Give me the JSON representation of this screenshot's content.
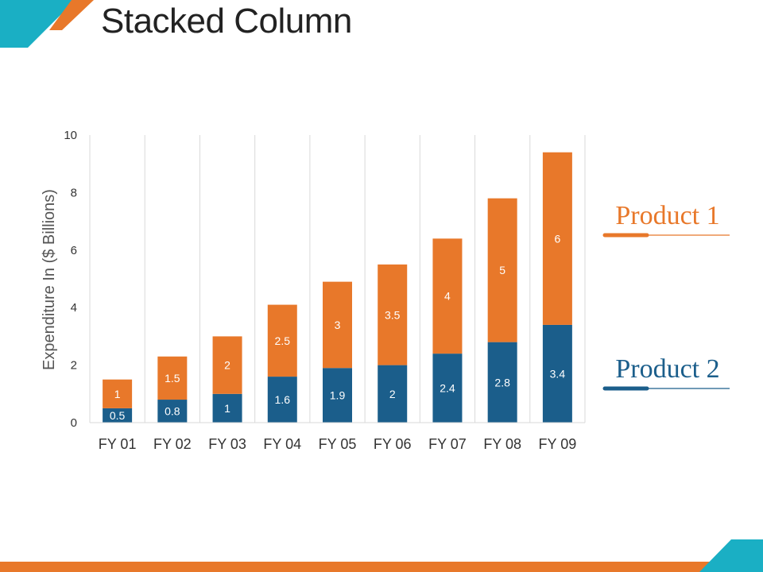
{
  "title": "Stacked Column",
  "colors": {
    "orange": "#E8782A",
    "blue": "#1B5E8B",
    "teal": "#1AAFC4",
    "grid": "#D9D9D9"
  },
  "chart_data": {
    "type": "bar",
    "stacked": true,
    "categories": [
      "FY 01",
      "FY 02",
      "FY 03",
      "FY 04",
      "FY 05",
      "FY 06",
      "FY 07",
      "FY 08",
      "FY 09"
    ],
    "series": [
      {
        "name": "Product 2",
        "color": "#1B5E8B",
        "values": [
          0.5,
          0.8,
          1,
          1.6,
          1.9,
          2,
          2.4,
          2.8,
          3.4
        ]
      },
      {
        "name": "Product 1",
        "color": "#E8782A",
        "values": [
          1,
          1.5,
          2,
          2.5,
          3,
          3.5,
          4,
          5,
          6
        ]
      }
    ],
    "ylabel": "Expenditure In ($ Billions)",
    "xlabel": "",
    "ylim": [
      0,
      10
    ],
    "yticks": [
      0,
      2,
      4,
      6,
      8,
      10
    ],
    "grid": "vertical",
    "legend": "right",
    "data_labels": true
  }
}
